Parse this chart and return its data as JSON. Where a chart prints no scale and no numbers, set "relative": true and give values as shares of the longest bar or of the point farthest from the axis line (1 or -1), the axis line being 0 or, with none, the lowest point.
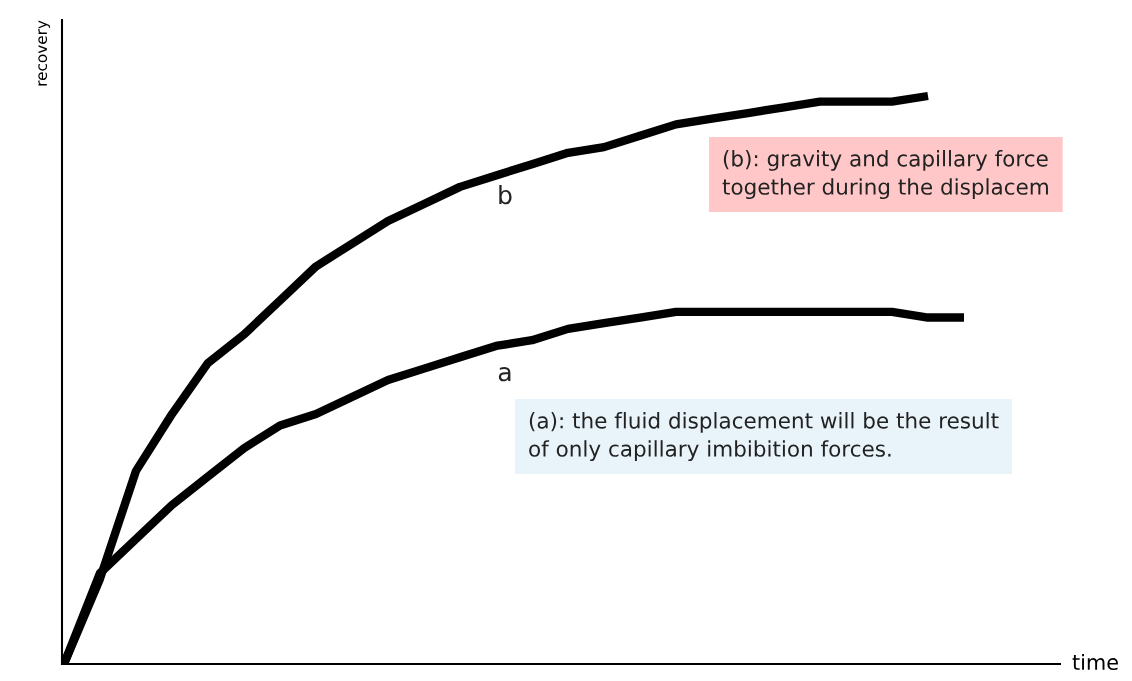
{
  "chart_data": {
    "type": "line",
    "relative": true,
    "xlabel": "time",
    "ylabel": "recovery",
    "categories": [
      null,
      null,
      null,
      null,
      null,
      null,
      null,
      null,
      null,
      null,
      null,
      null,
      null,
      null,
      null,
      null,
      null,
      null,
      null,
      null,
      null,
      null,
      null,
      null,
      null,
      null
    ],
    "series": [
      {
        "color": "#000000",
        "values": [
          0,
          0.15,
          0.34,
          0.44,
          0.53,
          0.58,
          0.64,
          0.7,
          0.74,
          0.78,
          0.81,
          0.84,
          0.86,
          0.88,
          0.9,
          0.91,
          0.93,
          0.95,
          0.96,
          0.97,
          0.98,
          0.99,
          0.99,
          0.99,
          1.0,
          null
        ]
      },
      {
        "color": "#000000",
        "values": [
          0,
          0.16,
          0.22,
          0.28,
          0.33,
          0.38,
          0.42,
          0.44,
          0.47,
          0.5,
          0.52,
          0.54,
          0.56,
          0.57,
          0.59,
          0.6,
          0.61,
          0.62,
          0.62,
          0.62,
          0.62,
          0.62,
          0.62,
          0.62,
          0.61,
          0.61
        ]
      }
    ],
    "annotations": [
      "b",
      "a",
      "(b): gravity and capillary force\ntogether during the displacem",
      "(a): the fluid displacement will be the result\nof only capillary imbibition forces."
    ],
    "legend": false,
    "marker": "none",
    "line_style": "solid"
  }
}
